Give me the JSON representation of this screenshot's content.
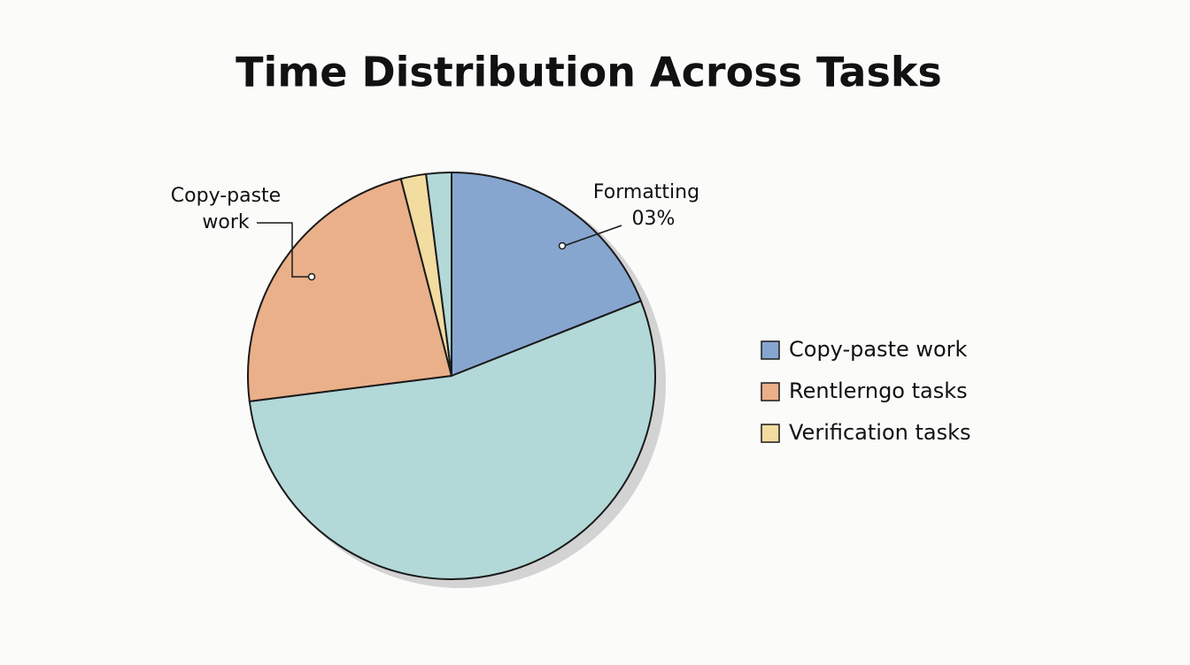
{
  "chart_data": {
    "type": "pie",
    "title": "Time Distribution Across Tasks",
    "values": [
      19,
      54,
      23,
      2,
      2
    ],
    "colors": [
      "#87a6cf",
      "#b3d8d8",
      "#eab08a",
      "#f3dca0",
      "#b3d8d8"
    ],
    "legend": [
      {
        "name": "Copy-paste work",
        "color": "#87a6cf"
      },
      {
        "name": "Rentlerngo tasks",
        "color": "#eab08a"
      },
      {
        "name": "Verification tasks",
        "color": "#f3dca0"
      }
    ],
    "annotations": [
      {
        "lines": [
          "Copy-paste",
          "work"
        ]
      },
      {
        "lines": [
          "Formatting",
          "03%"
        ]
      }
    ]
  }
}
